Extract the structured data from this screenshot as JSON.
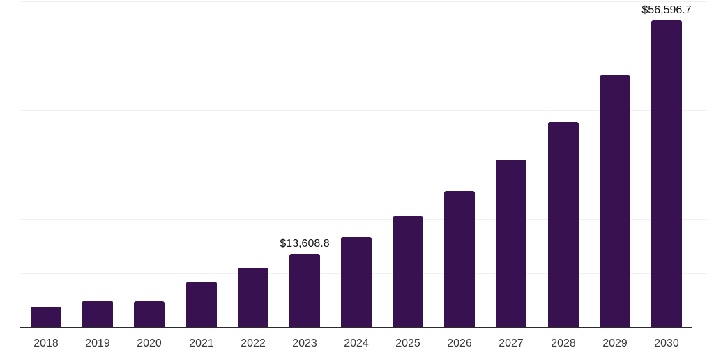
{
  "chart_data": {
    "type": "bar",
    "title": "",
    "xlabel": "",
    "ylabel": "",
    "categories": [
      "2018",
      "2019",
      "2020",
      "2021",
      "2022",
      "2023",
      "2024",
      "2025",
      "2026",
      "2027",
      "2028",
      "2029",
      "2030"
    ],
    "values": [
      3850,
      5000,
      4870,
      8470,
      11030,
      13608.8,
      16680,
      20530,
      25150,
      30930,
      37850,
      46450,
      56596.7
    ],
    "data_labels": [
      {
        "category": "2023",
        "text": "$13,608.8"
      },
      {
        "category": "2030",
        "text": "$56,596.7"
      }
    ],
    "ylim": [
      0,
      60000
    ],
    "gridline_step": 10000,
    "grid": "horizontal-light-gray, no y tick labels",
    "legend": "none",
    "colors": {
      "bar": "#371150",
      "axis_line": "#2b2b2b",
      "gridline": "#f0f0f0",
      "tick_label": "#3a3a3a",
      "data_label": "#111111",
      "background": "#ffffff"
    }
  }
}
